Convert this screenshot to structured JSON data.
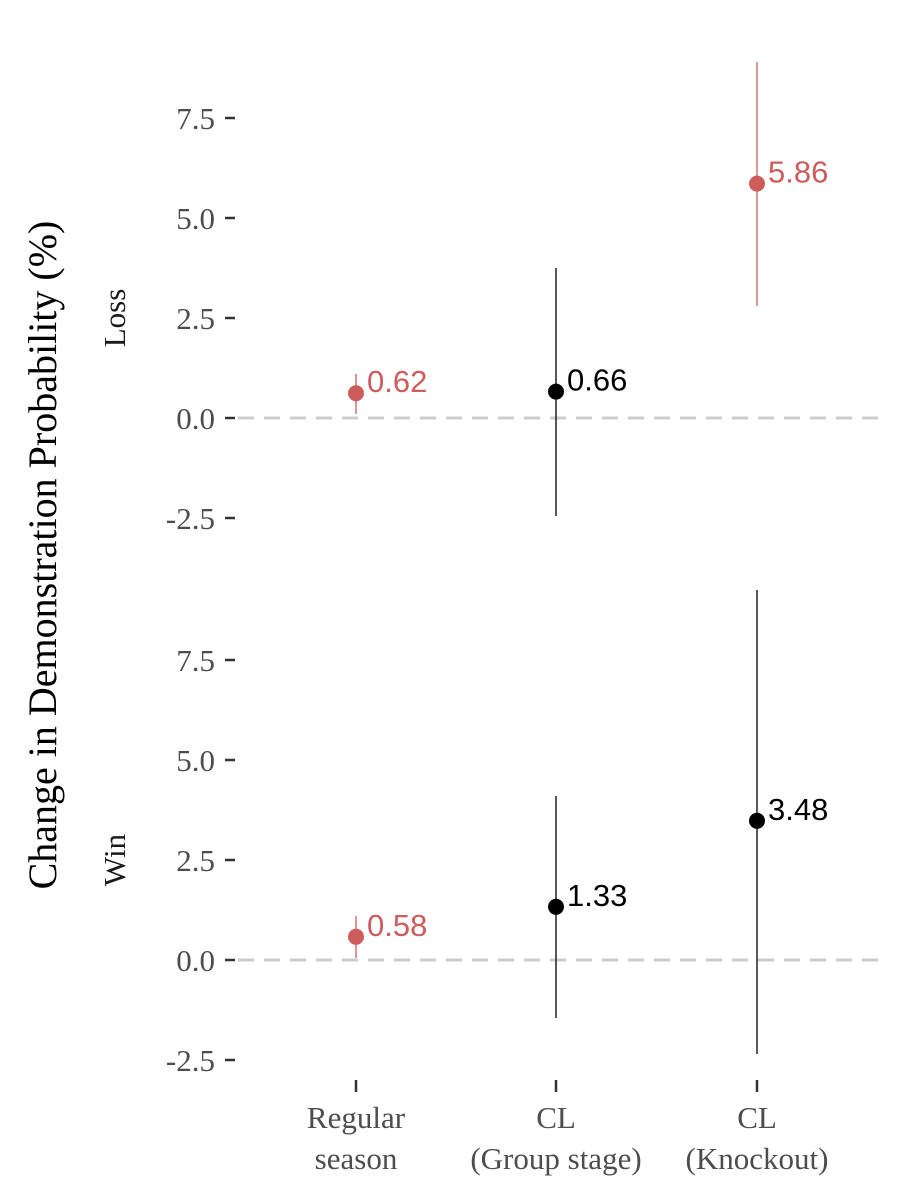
{
  "chart_data": {
    "type": "scatter",
    "ylabel": "Change in Demonstration Probability (%)",
    "categories": [
      "Regular\nseason",
      "CL\n(Group stage)",
      "CL\n(Knockout)"
    ],
    "yticks": [
      -2.5,
      0.0,
      2.5,
      5.0,
      7.5
    ],
    "ytick_labels": [
      "-2.5",
      "0.0",
      "2.5",
      "5.0",
      "7.5"
    ],
    "ylim": [
      -3.0,
      8.9
    ],
    "reference_line": 0,
    "colors": {
      "significant": "#cd5c5c",
      "not_significant": "#000000",
      "reference": "#cccccc"
    },
    "panels": [
      {
        "label": "Loss",
        "points": [
          {
            "category": 0,
            "value": 0.62,
            "label": "0.62",
            "lower": 0.1,
            "upper": 1.1,
            "color": "#cd5c5c"
          },
          {
            "category": 1,
            "value": 0.66,
            "label": "0.66",
            "lower": -2.45,
            "upper": 3.75,
            "color": "#000000"
          },
          {
            "category": 2,
            "value": 5.86,
            "label": "5.86",
            "lower": 2.8,
            "upper": 8.9,
            "color": "#cd5c5c"
          }
        ]
      },
      {
        "label": "Win",
        "points": [
          {
            "category": 0,
            "value": 0.58,
            "label": "0.58",
            "lower": 0.05,
            "upper": 1.1,
            "color": "#cd5c5c"
          },
          {
            "category": 1,
            "value": 1.33,
            "label": "1.33",
            "lower": -1.45,
            "upper": 4.1,
            "color": "#000000"
          },
          {
            "category": 2,
            "value": 3.48,
            "label": "3.48",
            "lower": -2.35,
            "upper": 9.25,
            "color": "#000000"
          }
        ]
      }
    ]
  }
}
